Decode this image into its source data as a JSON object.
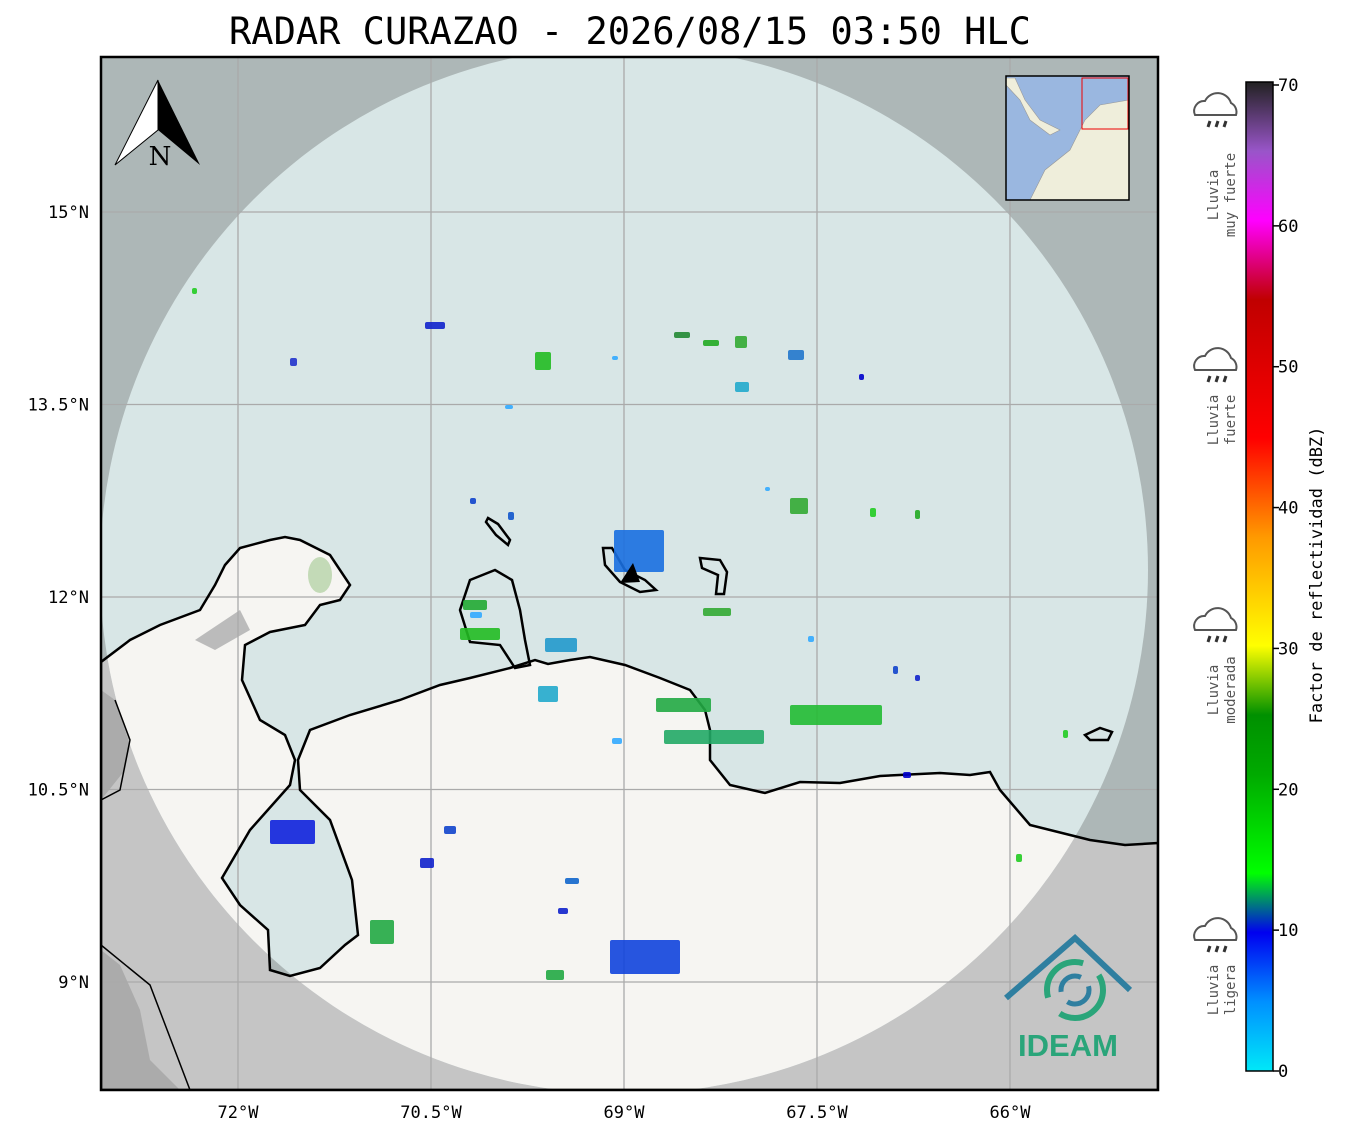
{
  "title": "RADAR CURAZAO - 2026/08/15 03:50 HLC",
  "map": {
    "lat_labels": [
      "15°N",
      "13.5°N",
      "12°N",
      "10.5°N",
      "9°N"
    ],
    "lon_labels": [
      "72°W",
      "70.5°W",
      "69°W",
      "67.5°W",
      "66°W"
    ],
    "north_label": "N",
    "logo": "IDEAM"
  },
  "colorbar": {
    "label": "Factor de reflectividad (dBZ)",
    "ticks": [
      0,
      10,
      20,
      30,
      40,
      50,
      60,
      70
    ],
    "categories": [
      {
        "lines": [
          "Lluvia",
          "muy fuerte"
        ]
      },
      {
        "lines": [
          "Lluvia",
          "fuerte"
        ]
      },
      {
        "lines": [
          "Lluvia",
          "moderada"
        ]
      },
      {
        "lines": [
          "Lluvia",
          "ligera"
        ]
      }
    ]
  }
}
